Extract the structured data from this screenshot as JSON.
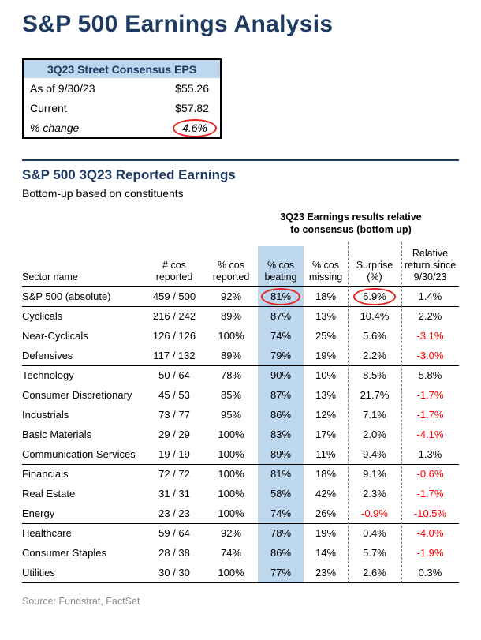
{
  "page": {
    "title": "S&P 500 Earnings Analysis",
    "source": "Source: Fundstrat, FactSet"
  },
  "colors": {
    "navy": "#1f3a60",
    "light_blue": "#bdd7ee",
    "circle_red": "#e8251f",
    "negative_red": "#ff0000"
  },
  "consensus_box": {
    "header": "3Q23 Street Consensus EPS",
    "rows": [
      {
        "label": "As of 9/30/23",
        "value": "$55.26"
      },
      {
        "label": "Current",
        "value": "$57.82"
      },
      {
        "label": "% change",
        "value": "4.6%"
      }
    ]
  },
  "section": {
    "title": "S&P 500 3Q23 Reported Earnings",
    "subtitle": "Bottom-up based on constituents"
  },
  "table": {
    "group_header_line1": "3Q23 Earnings results relative",
    "group_header_line2": "to consensus (bottom up)",
    "columns": [
      {
        "lines": [
          "Sector name"
        ]
      },
      {
        "lines": [
          "# cos",
          "reported"
        ]
      },
      {
        "lines": [
          "% cos",
          "reported"
        ]
      },
      {
        "lines": [
          "% cos",
          "beating"
        ],
        "highlight": true
      },
      {
        "lines": [
          "% cos",
          "missing"
        ]
      },
      {
        "lines": [
          "Surprise",
          "(%)"
        ]
      },
      {
        "lines": [
          "Relative",
          "return since",
          "9/30/23"
        ]
      }
    ],
    "groups": [
      {
        "rows": [
          {
            "name": "S&P 500 (absolute)",
            "reported": "459 / 500",
            "pct_reported": "92%",
            "beating": "81%",
            "missing": "18%",
            "surprise": "6.9%",
            "relative": "1.4%",
            "beating_circled": true,
            "surprise_circled": true
          }
        ]
      },
      {
        "rows": [
          {
            "name": "Cyclicals",
            "reported": "216 / 242",
            "pct_reported": "89%",
            "beating": "87%",
            "missing": "13%",
            "surprise": "10.4%",
            "relative": "2.2%"
          },
          {
            "name": "Near-Cyclicals",
            "reported": "126 / 126",
            "pct_reported": "100%",
            "beating": "74%",
            "missing": "25%",
            "surprise": "5.6%",
            "relative": "-3.1%"
          },
          {
            "name": "Defensives",
            "reported": "117 / 132",
            "pct_reported": "89%",
            "beating": "79%",
            "missing": "19%",
            "surprise": "2.2%",
            "relative": "-3.0%"
          }
        ]
      },
      {
        "rows": [
          {
            "name": "Technology",
            "reported": "50 / 64",
            "pct_reported": "78%",
            "beating": "90%",
            "missing": "10%",
            "surprise": "8.5%",
            "relative": "5.8%"
          },
          {
            "name": "Consumer Discretionary",
            "reported": "45 / 53",
            "pct_reported": "85%",
            "beating": "87%",
            "missing": "13%",
            "surprise": "21.7%",
            "relative": "-1.7%"
          },
          {
            "name": "Industrials",
            "reported": "73 / 77",
            "pct_reported": "95%",
            "beating": "86%",
            "missing": "12%",
            "surprise": "7.1%",
            "relative": "-1.7%"
          },
          {
            "name": "Basic Materials",
            "reported": "29 / 29",
            "pct_reported": "100%",
            "beating": "83%",
            "missing": "17%",
            "surprise": "2.0%",
            "relative": "-4.1%"
          },
          {
            "name": "Communication Services",
            "reported": "19 / 19",
            "pct_reported": "100%",
            "beating": "89%",
            "missing": "11%",
            "surprise": "9.4%",
            "relative": "1.3%"
          }
        ]
      },
      {
        "rows": [
          {
            "name": "Financials",
            "reported": "72 / 72",
            "pct_reported": "100%",
            "beating": "81%",
            "missing": "18%",
            "surprise": "9.1%",
            "relative": "-0.6%"
          },
          {
            "name": "Real Estate",
            "reported": "31 / 31",
            "pct_reported": "100%",
            "beating": "58%",
            "missing": "42%",
            "surprise": "2.3%",
            "relative": "-1.7%"
          },
          {
            "name": "Energy",
            "reported": "23 / 23",
            "pct_reported": "100%",
            "beating": "74%",
            "missing": "26%",
            "surprise": "-0.9%",
            "relative": "-10.5%"
          }
        ]
      },
      {
        "rows": [
          {
            "name": "Healthcare",
            "reported": "59 / 64",
            "pct_reported": "92%",
            "beating": "78%",
            "missing": "19%",
            "surprise": "0.4%",
            "relative": "-4.0%"
          },
          {
            "name": "Consumer Staples",
            "reported": "28 / 38",
            "pct_reported": "74%",
            "beating": "86%",
            "missing": "14%",
            "surprise": "5.7%",
            "relative": "-1.9%"
          },
          {
            "name": "Utilities",
            "reported": "30 / 30",
            "pct_reported": "100%",
            "beating": "77%",
            "missing": "23%",
            "surprise": "2.6%",
            "relative": "0.3%"
          }
        ]
      }
    ]
  }
}
